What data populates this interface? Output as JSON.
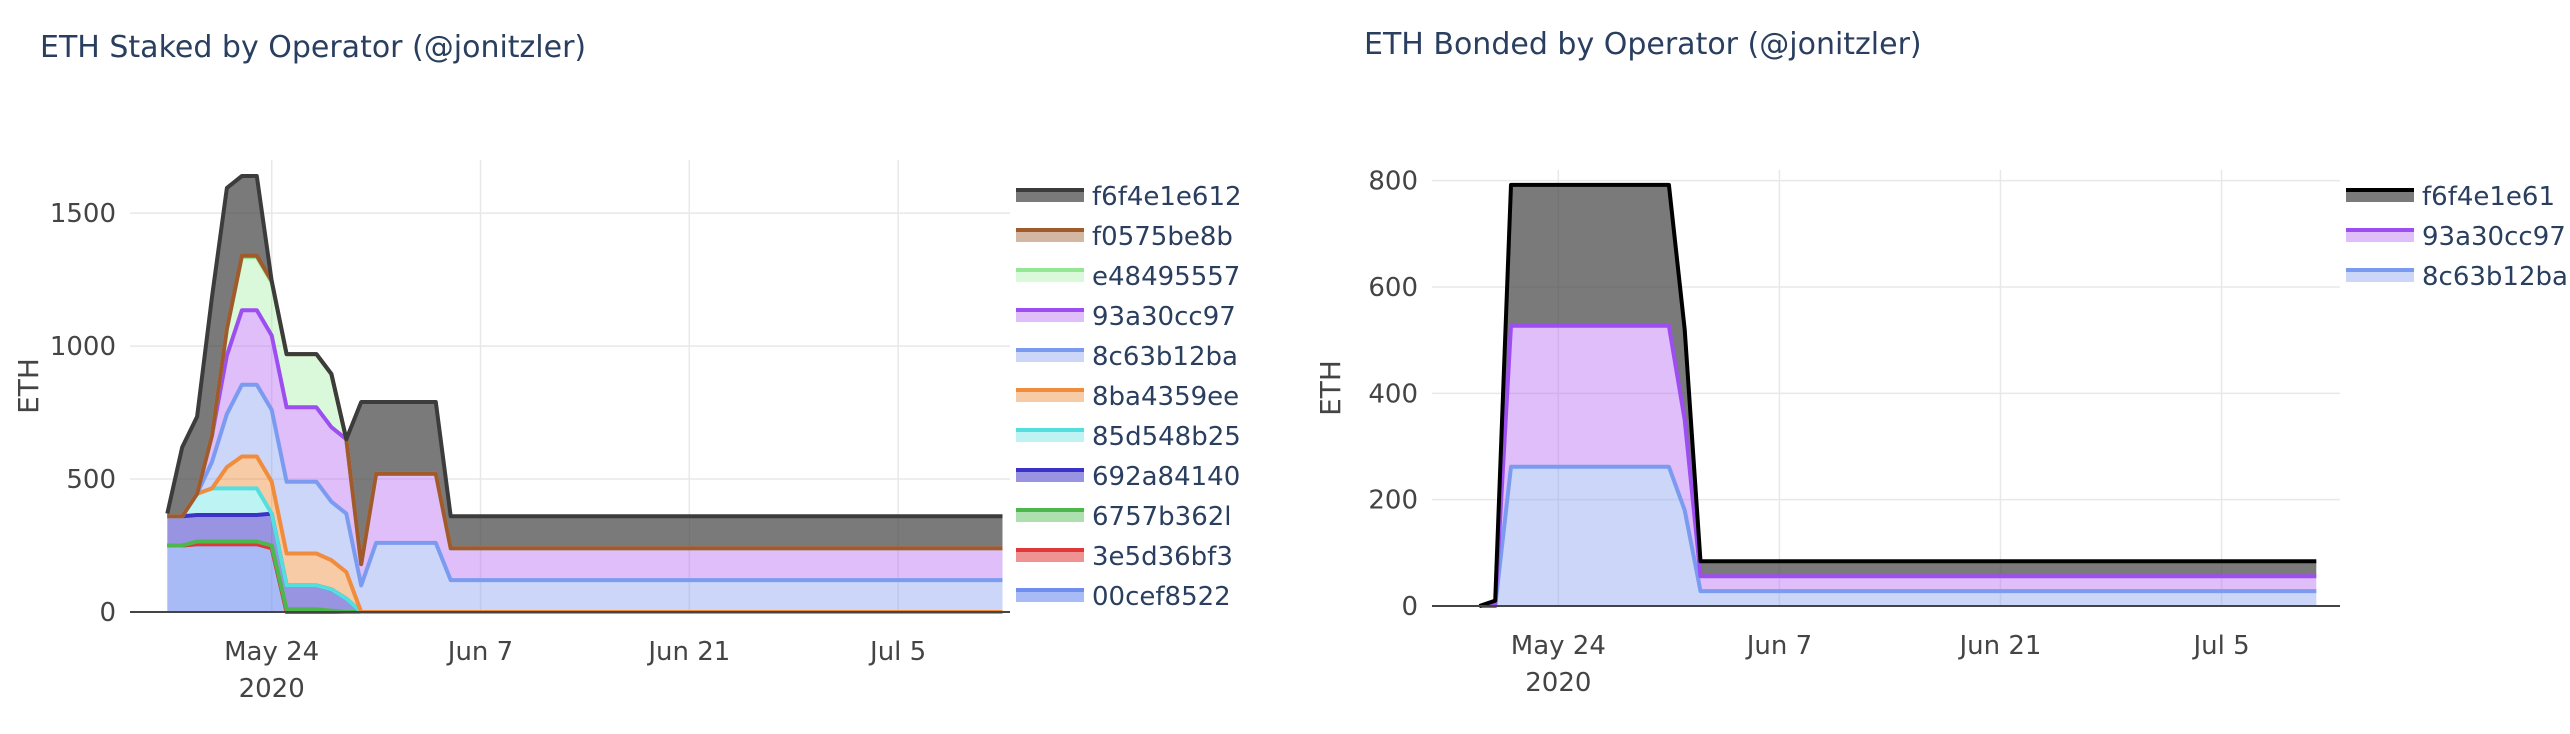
{
  "chart_data": [
    {
      "type": "area",
      "stacked": true,
      "title": "ETH Staked by Operator (@jonitzler)",
      "xlabel": "",
      "ylabel": "ETH",
      "ylim": [
        0,
        1700
      ],
      "yticks": [
        0,
        500,
        1000,
        1500
      ],
      "xlim": [
        4.5,
        63.5
      ],
      "xticks": [
        {
          "x": 14,
          "label": "May 24",
          "sublabel": "2020"
        },
        {
          "x": 28,
          "label": "Jun 7"
        },
        {
          "x": 42,
          "label": "Jun 21"
        },
        {
          "x": 56,
          "label": "Jul 5"
        }
      ],
      "grid": true,
      "legend_position": "right",
      "x": [
        7,
        8,
        9,
        10,
        11,
        12,
        13,
        14,
        15,
        16,
        17,
        18,
        19,
        20,
        21,
        22,
        23,
        24,
        25,
        26,
        27,
        35,
        45,
        55,
        63
      ],
      "series": [
        {
          "name": "00cef8522",
          "color": "#6f8ef0",
          "fill": "rgba(111,142,240,0.60)",
          "values": [
            250,
            250,
            255,
            255,
            255,
            255,
            255,
            240,
            0,
            0,
            0,
            0,
            0,
            0,
            0,
            0,
            0,
            0,
            0,
            0,
            0,
            0,
            0,
            0,
            0
          ]
        },
        {
          "name": "3e5d36bf3",
          "color": "#e03838",
          "fill": "rgba(224,56,56,0.55)",
          "values": [
            0,
            0,
            0,
            0,
            0,
            0,
            0,
            0,
            0,
            0,
            0,
            0,
            0,
            0,
            0,
            0,
            0,
            0,
            0,
            0,
            0,
            0,
            0,
            0,
            0
          ]
        },
        {
          "name": "6757b362l",
          "color": "#4cb84c",
          "fill": "rgba(76,184,76,0.45)",
          "values": [
            0,
            0,
            10,
            10,
            10,
            10,
            10,
            10,
            10,
            10,
            10,
            5,
            0,
            0,
            0,
            0,
            0,
            0,
            0,
            0,
            0,
            0,
            0,
            0,
            0
          ]
        },
        {
          "name": "692a84140",
          "color": "#3c32c8",
          "fill": "rgba(70,60,200,0.55)",
          "values": [
            110,
            110,
            100,
            100,
            100,
            100,
            100,
            120,
            90,
            90,
            90,
            80,
            50,
            0,
            0,
            0,
            0,
            0,
            0,
            0,
            0,
            0,
            0,
            0,
            0
          ]
        },
        {
          "name": "85d548b25",
          "color": "#55dede",
          "fill": "rgba(90,225,225,0.40)",
          "values": [
            0,
            0,
            80,
            100,
            100,
            100,
            100,
            0,
            0,
            0,
            0,
            0,
            0,
            0,
            0,
            0,
            0,
            0,
            0,
            0,
            0,
            0,
            0,
            0,
            0
          ]
        },
        {
          "name": "8ba4359ee",
          "color": "#f08c3c",
          "fill": "rgba(240,140,60,0.45)",
          "values": [
            0,
            0,
            0,
            0,
            80,
            120,
            120,
            120,
            120,
            120,
            120,
            110,
            100,
            0,
            0,
            0,
            0,
            0,
            0,
            0,
            0,
            0,
            0,
            0,
            0
          ]
        },
        {
          "name": "8c63b12ba",
          "color": "#7b9bf0",
          "fill": "rgba(140,165,240,0.45)",
          "values": [
            0,
            0,
            0,
            100,
            200,
            270,
            270,
            270,
            270,
            270,
            270,
            220,
            220,
            100,
            260,
            260,
            260,
            260,
            260,
            120,
            120,
            120,
            120,
            120,
            120
          ]
        },
        {
          "name": "93a30cc97",
          "color": "#9c4ef0",
          "fill": "rgba(185,110,245,0.45)",
          "values": [
            0,
            0,
            0,
            100,
            220,
            280,
            280,
            280,
            280,
            280,
            280,
            280,
            280,
            80,
            260,
            260,
            260,
            260,
            260,
            120,
            120,
            120,
            120,
            120,
            120
          ]
        },
        {
          "name": "e48495557",
          "color": "#94e694",
          "fill": "rgba(150,235,150,0.35)",
          "values": [
            0,
            0,
            0,
            0,
            100,
            200,
            200,
            200,
            200,
            200,
            200,
            200,
            0,
            0,
            0,
            0,
            0,
            0,
            0,
            0,
            0,
            0,
            0,
            0,
            0
          ]
        },
        {
          "name": "f0575be8b",
          "color": "#a05a2c",
          "fill": "rgba(160,95,50,0.45)",
          "values": [
            0,
            0,
            0,
            0,
            0,
            5,
            5,
            5,
            0,
            0,
            0,
            0,
            0,
            0,
            0,
            0,
            0,
            0,
            0,
            0,
            0,
            0,
            0,
            0,
            0
          ]
        },
        {
          "name": "f6f4e1e612",
          "color": "#3c3c3c",
          "fill": "rgba(70,70,70,0.72)",
          "values": [
            10,
            260,
            290,
            520,
            530,
            300,
            300,
            0,
            0,
            0,
            0,
            0,
            0,
            610,
            270,
            270,
            270,
            270,
            270,
            120,
            120,
            120,
            120,
            120,
            120
          ]
        }
      ]
    },
    {
      "type": "area",
      "stacked": true,
      "title": "ETH Bonded by Operator (@jonitzler)",
      "xlabel": "",
      "ylabel": "ETH",
      "ylim": [
        0,
        820
      ],
      "yticks": [
        0,
        200,
        400,
        600,
        800
      ],
      "xlim": [
        6,
        63.5
      ],
      "xticks": [
        {
          "x": 14,
          "label": "May 24",
          "sublabel": "2020"
        },
        {
          "x": 28,
          "label": "Jun 7"
        },
        {
          "x": 42,
          "label": "Jun 21"
        },
        {
          "x": 56,
          "label": "Jul 5"
        }
      ],
      "grid": true,
      "legend_position": "right",
      "x": [
        9,
        10,
        11,
        12,
        13,
        14,
        15,
        16,
        17,
        18,
        19,
        20,
        21,
        22,
        23,
        24,
        25,
        26,
        35,
        45,
        55,
        62
      ],
      "series": [
        {
          "name": "8c63b12ba",
          "color": "#7b9bf0",
          "fill": "rgba(140,165,240,0.45)",
          "values": [
            0,
            0,
            262,
            262,
            262,
            262,
            262,
            262,
            262,
            262,
            262,
            262,
            262,
            180,
            28,
            28,
            28,
            28,
            28,
            28,
            28,
            28
          ]
        },
        {
          "name": "93a30cc97",
          "color": "#9c4ef0",
          "fill": "rgba(185,110,245,0.45)",
          "values": [
            0,
            0,
            265,
            265,
            265,
            265,
            265,
            265,
            265,
            265,
            265,
            265,
            265,
            170,
            28,
            28,
            28,
            28,
            28,
            28,
            28,
            28
          ]
        },
        {
          "name": "f6f4e1e61",
          "color": "#000000",
          "fill": "rgba(70,70,70,0.72)",
          "values": [
            0,
            10,
            265,
            265,
            265,
            265,
            265,
            265,
            265,
            265,
            265,
            265,
            265,
            170,
            28,
            28,
            28,
            28,
            28,
            28,
            28,
            28
          ]
        }
      ]
    }
  ]
}
